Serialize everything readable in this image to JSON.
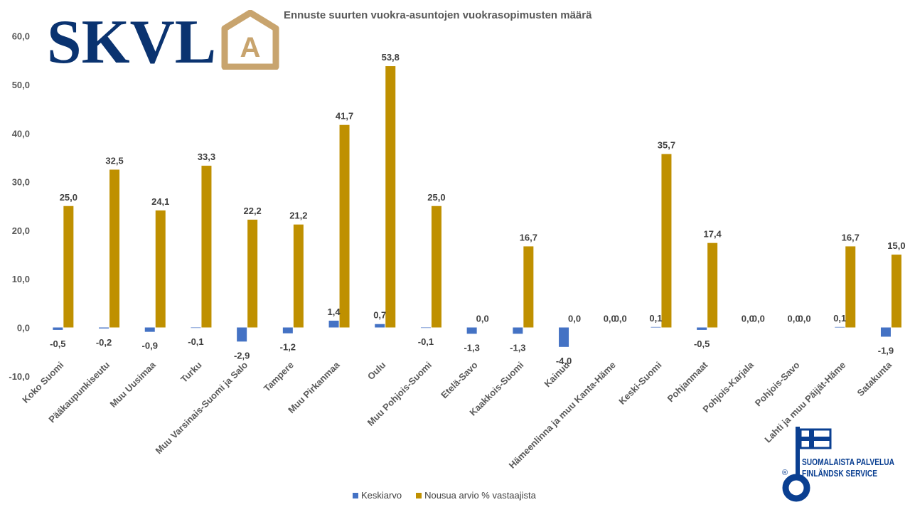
{
  "brand": {
    "logo_text": "SKVL",
    "logo_mark": "A",
    "navy": "#0a3370",
    "gold": "#c8a46e"
  },
  "badge": {
    "line1": "SUOMALAISTA PALVELUA",
    "line2": "FINLÄNDSK SERVICE",
    "registered": "®",
    "color": "#0a3f91"
  },
  "chart_data": {
    "type": "bar",
    "title": "Ennuste suurten vuokra-asuntojen vuokrasopimusten määrä",
    "categories": [
      "Koko Suomi",
      "Pääkaupunkiseutu",
      "Muu Uusimaa",
      "Turku",
      "Muu Varsinais-Suomi ja Salo",
      "Tampere",
      "Muu Pirkanmaa",
      "Oulu",
      "Muu Pohjois-Suomi",
      "Etelä-Savo",
      "Kaakkois-Suomi",
      "Kainuu",
      "Hämeenlinna ja muu Kanta-Häme",
      "Keski-Suomi",
      "Pohjanmaat",
      "Pohjois-Karjala",
      "Pohjois-Savo",
      "Lahti ja muu Päijät-Häme",
      "Satakunta"
    ],
    "series": [
      {
        "name": "Keskiarvo",
        "color": "#4472c4",
        "values": [
          -0.5,
          -0.2,
          -0.9,
          -0.1,
          -2.9,
          -1.2,
          1.4,
          0.7,
          -0.1,
          -1.3,
          -1.3,
          -4.0,
          0.0,
          0.1,
          -0.5,
          0.0,
          0.0,
          0.1,
          -1.9
        ],
        "labels": [
          "-0,5",
          "-0,2",
          "-0,9",
          "-0,1",
          "-2,9",
          "-1,2",
          "1,4",
          "0,7",
          "-0,1",
          "-1,3",
          "-1,3",
          "-4,0",
          "0,0",
          "0,1",
          "-0,5",
          "0,0",
          "0,0",
          "0,1",
          "-1,9"
        ]
      },
      {
        "name": "Nousua arvio % vastaajista",
        "color": "#bf9000",
        "values": [
          25.0,
          32.5,
          24.1,
          33.3,
          22.2,
          21.2,
          41.7,
          53.8,
          25.0,
          0.0,
          16.7,
          0.0,
          0.0,
          35.7,
          17.4,
          0.0,
          0.0,
          16.7,
          15.0
        ],
        "labels": [
          "25,0",
          "32,5",
          "24,1",
          "33,3",
          "22,2",
          "21,2",
          "41,7",
          "53,8",
          "25,0",
          "0,0",
          "16,7",
          "0,0",
          "0,0",
          "35,7",
          "17,4",
          "0,0",
          "0,0",
          "16,7",
          "15,0"
        ]
      }
    ],
    "yticks": [
      -10,
      0,
      10,
      20,
      30,
      40,
      50,
      60
    ],
    "ytick_labels": [
      "-10,0",
      "0,0",
      "10,0",
      "20,0",
      "30,0",
      "40,0",
      "50,0",
      "60,0"
    ],
    "ylim": [
      -10,
      60
    ],
    "xlabel": "",
    "ylabel": "",
    "grid": false,
    "legend": "bottom"
  }
}
